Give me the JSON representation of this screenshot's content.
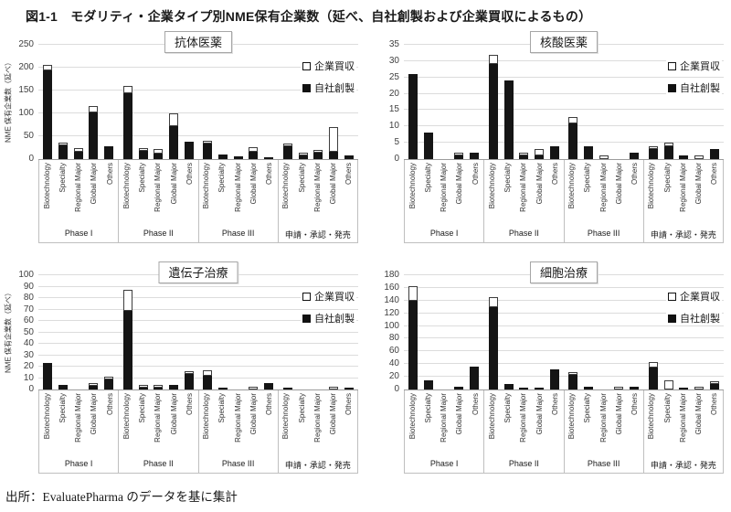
{
  "figure_title": "図1-1　モダリティ・企業タイプ別NME保有企業数（延べ、自社創製および企業買収によるもの）",
  "source": "出所：EvaluatePharma のデータを基に集計",
  "legend": {
    "acquisition_label": "企業買収",
    "inhouse_label": "自社創製"
  },
  "colors": {
    "inhouse_fill": "#151515",
    "acquisition_fill": "#ffffff",
    "acquisition_border": "#3d3d3d",
    "gridline": "#dcdcdc",
    "axis": "#9b9b9b",
    "table_border": "#bfbfbf",
    "title_box_border": "#a6a6a6"
  },
  "groups": [
    "Phase I",
    "Phase II",
    "Phase III",
    "申請・承認・発売"
  ],
  "categories": [
    "Biotechnology",
    "Specialty",
    "Regional Major",
    "Global Major",
    "Others"
  ],
  "chart_data": [
    {
      "type": "bar",
      "stacked": true,
      "title": "抗体医薬",
      "ylabel": "NME 保有企業数（延べ）",
      "ylim": [
        0,
        250
      ],
      "ystep": 50,
      "grid": true,
      "legend_position": "top-right",
      "series": [
        {
          "name": "自社創製",
          "values_by_group": [
            [
              195,
              30,
              17,
              103,
              29
            ],
            [
              145,
              19,
              13,
              73,
              39
            ],
            [
              35,
              11,
              7,
              16,
              4
            ],
            [
              28,
              9,
              14,
              17,
              9
            ]
          ]
        },
        {
          "name": "企業買収",
          "values_by_group": [
            [
              12,
              4,
              7,
              13,
              0
            ],
            [
              16,
              5,
              9,
              28,
              0
            ],
            [
              2,
              0,
              0,
              11,
              0
            ],
            [
              3,
              4,
              2,
              53,
              0
            ]
          ]
        }
      ]
    },
    {
      "type": "bar",
      "stacked": true,
      "title": "核酸医薬",
      "ylabel": null,
      "ylim": [
        0,
        35
      ],
      "ystep": 5,
      "grid": true,
      "legend_position": "top-right",
      "series": [
        {
          "name": "自社創製",
          "values_by_group": [
            [
              26,
              8,
              0,
              1,
              2
            ],
            [
              29,
              24,
              1,
              1,
              4
            ],
            [
              11,
              4,
              0,
              0,
              2
            ],
            [
              3,
              4,
              1,
              0,
              3
            ]
          ]
        },
        {
          "name": "企業買収",
          "values_by_group": [
            [
              0,
              0,
              0,
              1,
              0
            ],
            [
              3,
              0,
              1,
              2,
              0
            ],
            [
              2,
              0,
              1,
              0,
              0
            ],
            [
              1,
              1,
              0,
              1,
              0
            ]
          ]
        }
      ]
    },
    {
      "type": "bar",
      "stacked": true,
      "title": "遺伝子治療",
      "ylabel": "NME 保有企業数（延べ）",
      "ylim": [
        0,
        100
      ],
      "ystep": 10,
      "grid": true,
      "legend_position": "top-right",
      "series": [
        {
          "name": "自社創製",
          "values_by_group": [
            [
              23,
              4,
              0,
              3,
              9
            ],
            [
              69,
              2,
              1,
              4,
              14
            ],
            [
              12,
              1,
              0,
              0,
              6
            ],
            [
              2,
              0,
              0,
              0,
              2
            ]
          ]
        },
        {
          "name": "企業買収",
          "values_by_group": [
            [
              0,
              0,
              0,
              3,
              1
            ],
            [
              18,
              2,
              1,
              0,
              2
            ],
            [
              5,
              0,
              0,
              1,
              0
            ],
            [
              0,
              0,
              0,
              1,
              0
            ]
          ]
        }
      ]
    },
    {
      "type": "bar",
      "stacked": true,
      "title": "細胞治療",
      "ylabel": null,
      "ylim": [
        0,
        180
      ],
      "ystep": 20,
      "grid": true,
      "legend_position": "top-right",
      "series": [
        {
          "name": "自社創製",
          "values_by_group": [
            [
              139,
              15,
              0,
              4,
              36
            ],
            [
              130,
              9,
              3,
              2,
              32
            ],
            [
              23,
              5,
              0,
              0,
              5
            ],
            [
              35,
              0,
              2,
              0,
              8
            ]
          ]
        },
        {
          "name": "企業買収",
          "values_by_group": [
            [
              24,
              0,
              0,
              0,
              0
            ],
            [
              15,
              0,
              0,
              0,
              0
            ],
            [
              3,
              0,
              0,
              1,
              0
            ],
            [
              8,
              15,
              0,
              1,
              2
            ]
          ]
        }
      ]
    }
  ]
}
